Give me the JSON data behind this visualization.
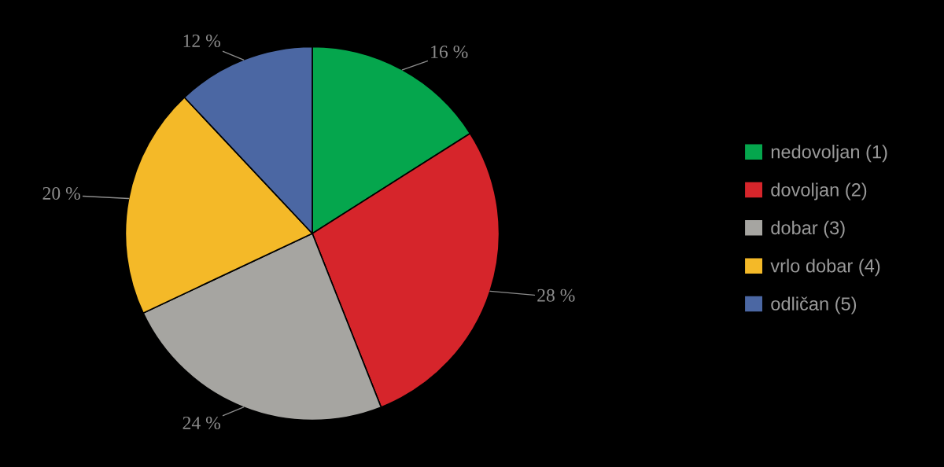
{
  "chart_data": {
    "type": "pie",
    "categories": [
      "nedovoljan (1)",
      "dovoljan (2)",
      "dobar (3)",
      "vrlo dobar (4)",
      "odličan (5)"
    ],
    "values": [
      16,
      28,
      24,
      20,
      12
    ],
    "colors": [
      "#05a64d",
      "#d6252b",
      "#a6a5a1",
      "#f4b928",
      "#4b67a3"
    ],
    "value_labels": [
      "16 %",
      "28 %",
      "24 %",
      "20 %",
      "12 %"
    ],
    "legend": "right"
  }
}
